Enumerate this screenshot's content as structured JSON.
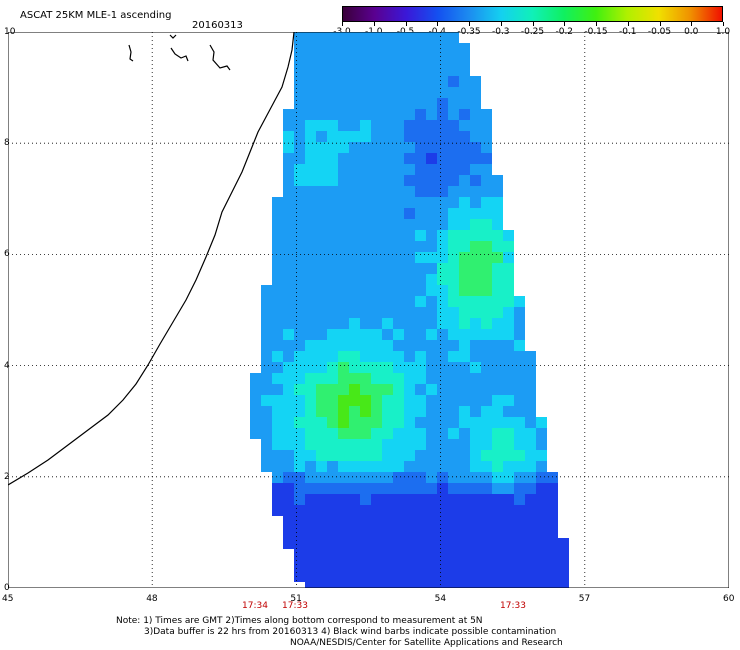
{
  "header": {
    "title": "ASCAT 25KM MLE-1 ascending",
    "date": "20160313"
  },
  "colorbar": {
    "labels": [
      "-3.0",
      "-1.0",
      "-0.5",
      "-0.4",
      "-0.35",
      "-0.3",
      "-0.25",
      "-0.2",
      "-0.15",
      "-0.1",
      "-0.05",
      "0.0",
      "1.0"
    ],
    "colors": [
      "#3a003a",
      "#5a0090",
      "#3a18d8",
      "#1450f0",
      "#1c8cf0",
      "#14d0f0",
      "#10f0b8",
      "#10f060",
      "#40f010",
      "#b0f000",
      "#f0e000",
      "#f09000",
      "#f01000"
    ]
  },
  "axes": {
    "x_ticks": [
      "45",
      "48",
      "51",
      "54",
      "57",
      "60"
    ],
    "y_ticks": [
      "0",
      "2",
      "4",
      "6",
      "8",
      "10"
    ],
    "x_range": [
      45,
      60
    ],
    "y_range": [
      0,
      10
    ],
    "grid": true
  },
  "pass_times": [
    "17:34",
    "17:33",
    "17:33"
  ],
  "note": {
    "line1": "Note: 1) Times are GMT 2)Times along bottom correspond to measurement at 5N",
    "line2": "3)Data buffer is 22 hrs from 20160313 4) Black wind barbs indicate possible contamination",
    "line3": "NOAA/NESDIS/Center for Satellite Applications and Research"
  }
}
